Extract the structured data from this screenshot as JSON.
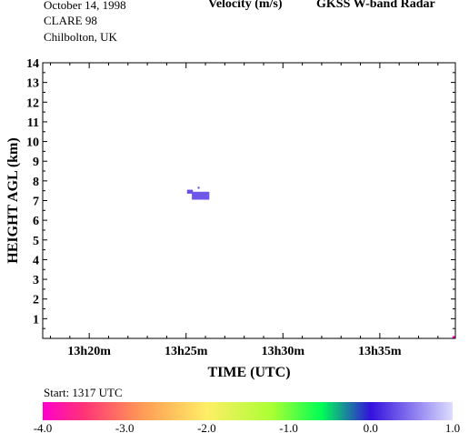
{
  "header": {
    "date": "October  14, 1998",
    "campaign": "CLARE 98",
    "location": "Chilbolton, UK",
    "quantity": "Velocity (m/s)",
    "instrument": "GKSS  W-band Radar"
  },
  "start_label": "Start: 1317 UTC",
  "chart_data": {
    "type": "heatmap",
    "xlabel": "TIME (UTC)",
    "ylabel": "HEIGHT AGL (km)",
    "x_ticks": [
      {
        "value": 20,
        "label": "13h20m"
      },
      {
        "value": 25,
        "label": "13h25m"
      },
      {
        "value": 30,
        "label": "13h30m"
      },
      {
        "value": 35,
        "label": "13h35m"
      }
    ],
    "xlim_minutes_after_1300": [
      17.6,
      38.9
    ],
    "ylim": [
      0,
      14
    ],
    "y_ticks": [
      1,
      2,
      3,
      4,
      5,
      6,
      7,
      8,
      9,
      10,
      11,
      12,
      13,
      14
    ],
    "echoes": [
      {
        "t_start": 25.05,
        "t_end": 25.35,
        "h_low": 7.35,
        "h_high": 7.55,
        "velocity": 0.3
      },
      {
        "t_start": 25.3,
        "t_end": 26.2,
        "h_low": 7.05,
        "h_high": 7.45,
        "velocity": 0.35
      },
      {
        "t_start": 25.6,
        "t_end": 25.7,
        "h_low": 7.6,
        "h_high": 7.7,
        "velocity": 0.35
      },
      {
        "t_start": 38.75,
        "t_end": 38.9,
        "h_low": 0.0,
        "h_high": 0.12,
        "velocity": -4.0
      }
    ],
    "colorbar": {
      "min": -4.0,
      "max": 1.0,
      "ticks": [
        {
          "value": -4.0,
          "label": "-4.0"
        },
        {
          "value": -3.0,
          "label": "-3.0"
        },
        {
          "value": -2.0,
          "label": "-2.0"
        },
        {
          "value": -1.0,
          "label": "-1.0"
        },
        {
          "value": 0.0,
          "label": "0.0"
        },
        {
          "value": 1.0,
          "label": "1.0"
        }
      ],
      "stops": [
        {
          "value": -4.0,
          "color": "#ff00cc"
        },
        {
          "value": -3.5,
          "color": "#ff3377"
        },
        {
          "value": -2.8,
          "color": "#ff9955"
        },
        {
          "value": -2.0,
          "color": "#ffee66"
        },
        {
          "value": -1.2,
          "color": "#aaff33"
        },
        {
          "value": -0.6,
          "color": "#00ff55"
        },
        {
          "value": 0.0,
          "color": "#3311dd"
        },
        {
          "value": 0.5,
          "color": "#8877ee"
        },
        {
          "value": 1.0,
          "color": "#ddddff"
        }
      ]
    }
  }
}
